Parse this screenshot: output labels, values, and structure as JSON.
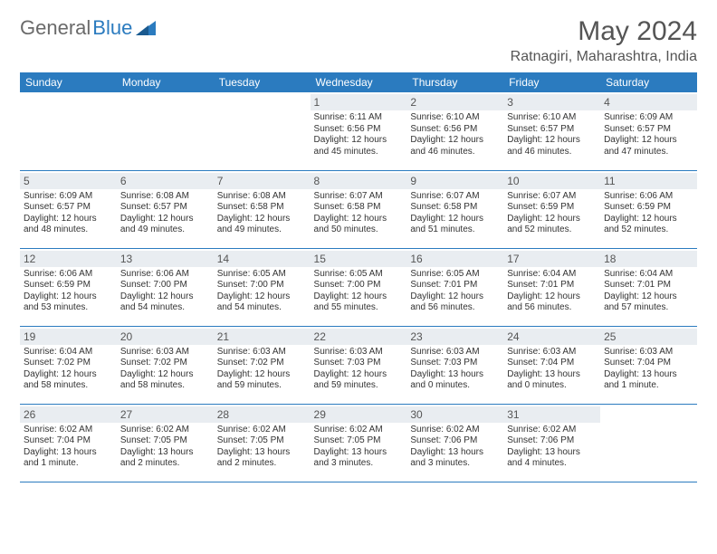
{
  "logo": {
    "textA": "General",
    "textB": "Blue"
  },
  "title": "May 2024",
  "location": "Ratnagiri, Maharashtra, India",
  "colors": {
    "header_bg": "#2b7bbf",
    "header_text": "#ffffff",
    "daynum_bg": "#e9edf1",
    "text": "#333333",
    "logo_gray": "#6a6a6a",
    "logo_blue": "#2b7bbf"
  },
  "fonts": {
    "body": "Arial",
    "title_pt": 30,
    "location_pt": 16,
    "th_pt": 12,
    "daynum_pt": 12,
    "cell_pt": 10
  },
  "weekdays": [
    "Sunday",
    "Monday",
    "Tuesday",
    "Wednesday",
    "Thursday",
    "Friday",
    "Saturday"
  ],
  "labels": {
    "sunrise": "Sunrise: ",
    "sunset": "Sunset: ",
    "daylight": "Daylight: "
  },
  "weeks": [
    [
      null,
      null,
      null,
      {
        "n": "1",
        "sr": "6:11 AM",
        "ss": "6:56 PM",
        "dl": "12 hours and 45 minutes."
      },
      {
        "n": "2",
        "sr": "6:10 AM",
        "ss": "6:56 PM",
        "dl": "12 hours and 46 minutes."
      },
      {
        "n": "3",
        "sr": "6:10 AM",
        "ss": "6:57 PM",
        "dl": "12 hours and 46 minutes."
      },
      {
        "n": "4",
        "sr": "6:09 AM",
        "ss": "6:57 PM",
        "dl": "12 hours and 47 minutes."
      }
    ],
    [
      {
        "n": "5",
        "sr": "6:09 AM",
        "ss": "6:57 PM",
        "dl": "12 hours and 48 minutes."
      },
      {
        "n": "6",
        "sr": "6:08 AM",
        "ss": "6:57 PM",
        "dl": "12 hours and 49 minutes."
      },
      {
        "n": "7",
        "sr": "6:08 AM",
        "ss": "6:58 PM",
        "dl": "12 hours and 49 minutes."
      },
      {
        "n": "8",
        "sr": "6:07 AM",
        "ss": "6:58 PM",
        "dl": "12 hours and 50 minutes."
      },
      {
        "n": "9",
        "sr": "6:07 AM",
        "ss": "6:58 PM",
        "dl": "12 hours and 51 minutes."
      },
      {
        "n": "10",
        "sr": "6:07 AM",
        "ss": "6:59 PM",
        "dl": "12 hours and 52 minutes."
      },
      {
        "n": "11",
        "sr": "6:06 AM",
        "ss": "6:59 PM",
        "dl": "12 hours and 52 minutes."
      }
    ],
    [
      {
        "n": "12",
        "sr": "6:06 AM",
        "ss": "6:59 PM",
        "dl": "12 hours and 53 minutes."
      },
      {
        "n": "13",
        "sr": "6:06 AM",
        "ss": "7:00 PM",
        "dl": "12 hours and 54 minutes."
      },
      {
        "n": "14",
        "sr": "6:05 AM",
        "ss": "7:00 PM",
        "dl": "12 hours and 54 minutes."
      },
      {
        "n": "15",
        "sr": "6:05 AM",
        "ss": "7:00 PM",
        "dl": "12 hours and 55 minutes."
      },
      {
        "n": "16",
        "sr": "6:05 AM",
        "ss": "7:01 PM",
        "dl": "12 hours and 56 minutes."
      },
      {
        "n": "17",
        "sr": "6:04 AM",
        "ss": "7:01 PM",
        "dl": "12 hours and 56 minutes."
      },
      {
        "n": "18",
        "sr": "6:04 AM",
        "ss": "7:01 PM",
        "dl": "12 hours and 57 minutes."
      }
    ],
    [
      {
        "n": "19",
        "sr": "6:04 AM",
        "ss": "7:02 PM",
        "dl": "12 hours and 58 minutes."
      },
      {
        "n": "20",
        "sr": "6:03 AM",
        "ss": "7:02 PM",
        "dl": "12 hours and 58 minutes."
      },
      {
        "n": "21",
        "sr": "6:03 AM",
        "ss": "7:02 PM",
        "dl": "12 hours and 59 minutes."
      },
      {
        "n": "22",
        "sr": "6:03 AM",
        "ss": "7:03 PM",
        "dl": "12 hours and 59 minutes."
      },
      {
        "n": "23",
        "sr": "6:03 AM",
        "ss": "7:03 PM",
        "dl": "13 hours and 0 minutes."
      },
      {
        "n": "24",
        "sr": "6:03 AM",
        "ss": "7:04 PM",
        "dl": "13 hours and 0 minutes."
      },
      {
        "n": "25",
        "sr": "6:03 AM",
        "ss": "7:04 PM",
        "dl": "13 hours and 1 minute."
      }
    ],
    [
      {
        "n": "26",
        "sr": "6:02 AM",
        "ss": "7:04 PM",
        "dl": "13 hours and 1 minute."
      },
      {
        "n": "27",
        "sr": "6:02 AM",
        "ss": "7:05 PM",
        "dl": "13 hours and 2 minutes."
      },
      {
        "n": "28",
        "sr": "6:02 AM",
        "ss": "7:05 PM",
        "dl": "13 hours and 2 minutes."
      },
      {
        "n": "29",
        "sr": "6:02 AM",
        "ss": "7:05 PM",
        "dl": "13 hours and 3 minutes."
      },
      {
        "n": "30",
        "sr": "6:02 AM",
        "ss": "7:06 PM",
        "dl": "13 hours and 3 minutes."
      },
      {
        "n": "31",
        "sr": "6:02 AM",
        "ss": "7:06 PM",
        "dl": "13 hours and 4 minutes."
      },
      null
    ]
  ]
}
